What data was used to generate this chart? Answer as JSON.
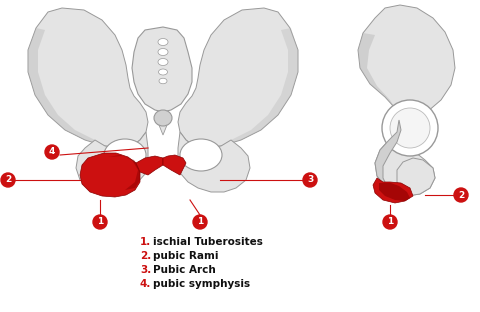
{
  "bg_color": "#ffffff",
  "bone_fill": "#e4e4e4",
  "bone_fill2": "#d0d0d0",
  "bone_edge": "#999999",
  "bone_edge2": "#bbbbbb",
  "red_fill": "#cc1010",
  "dark_red": "#8b0000",
  "line_color": "#cc1010",
  "label_bg": "#cc1010",
  "label_text": "#ffffff",
  "body_text": "#111111",
  "shadow": "#b0b0b0",
  "legend_items": [
    {
      "num": "1.",
      "text": "ischial Tuberosites"
    },
    {
      "num": "2.",
      "text": "pubic Rami"
    },
    {
      "num": "3.",
      "text": "Pubic Arch"
    },
    {
      "num": "4.",
      "text": "pubic symphysis"
    }
  ],
  "label_fontsize": 6.5,
  "legend_fontsize": 7.5
}
